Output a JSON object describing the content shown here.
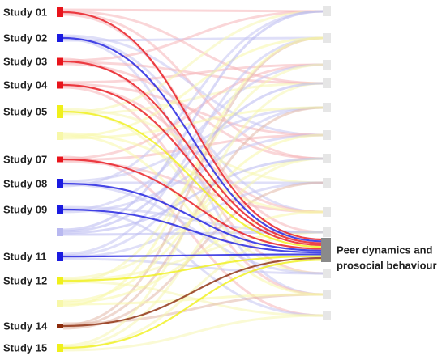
{
  "studies": [
    {
      "label": "Study 01",
      "color": "#e8141b"
    },
    {
      "label": "Study 02",
      "color": "#1a1ae0"
    },
    {
      "label": "Study 03",
      "color": "#e8141b"
    },
    {
      "label": "Study 04",
      "color": "#e8141b"
    },
    {
      "label": "Study 05",
      "color": "#f0f01a"
    },
    {
      "label": "Study 07",
      "color": "#e8141b"
    },
    {
      "label": "Study 08",
      "color": "#1a1ae0"
    },
    {
      "label": "Study 09",
      "color": "#1a1ae0"
    },
    {
      "label": "Study 11",
      "color": "#1a1ae0"
    },
    {
      "label": "Study 12",
      "color": "#f0f01a"
    },
    {
      "label": "Study 14",
      "color": "#8b2a0a"
    },
    {
      "label": "Study 15",
      "color": "#f0f01a"
    }
  ],
  "target": {
    "label_lines": [
      "Peer dynamics and",
      "prosocial behaviour"
    ]
  }
}
